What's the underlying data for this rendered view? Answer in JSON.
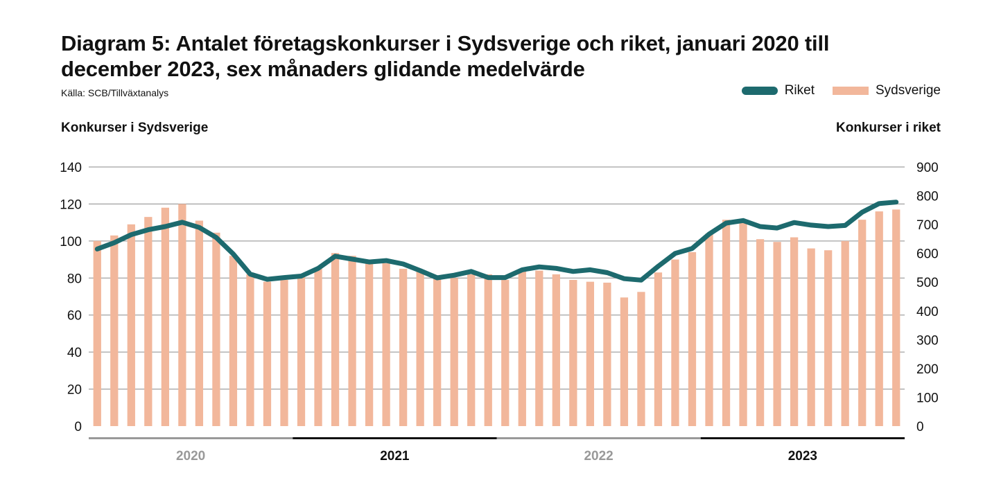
{
  "title": "Diagram 5: Antalet företagskonkurser i Sydsverige och riket, januari 2020 till december 2023, sex månaders glidande medelvärde",
  "source": "Källa: SCB/Tillväxtanalys",
  "legend": {
    "line_label": "Riket",
    "bar_label": "Sydsverige"
  },
  "colors": {
    "line": "#1d6a6e",
    "bar": "#f2b79b",
    "year_dark": "#111111",
    "year_light": "#999999"
  },
  "chart_data": {
    "type": "bar+line",
    "left_axis_title": "Konkurser i Sydsverige",
    "right_axis_title": "Konkurser i riket",
    "left_ylim": [
      0,
      140
    ],
    "left_ticks": [
      "0",
      "20",
      "40",
      "60",
      "80",
      "100",
      "120",
      "140"
    ],
    "right_ylim": [
      0,
      900
    ],
    "right_ticks": [
      "0",
      "100",
      "200",
      "300",
      "400",
      "500",
      "600",
      "700",
      "800",
      "900"
    ],
    "years": [
      {
        "label": "2020",
        "style": "light"
      },
      {
        "label": "2021",
        "style": "dark"
      },
      {
        "label": "2022",
        "style": "light"
      },
      {
        "label": "2023",
        "style": "dark"
      }
    ],
    "series": [
      {
        "name": "Sydsverige",
        "axis": "left",
        "type": "bar",
        "values": [
          100,
          103,
          109,
          113,
          118,
          120,
          111,
          104.5,
          92,
          82,
          78,
          79,
          81,
          85,
          93.5,
          92,
          89,
          88,
          85,
          84,
          81,
          80,
          82,
          82,
          79,
          84,
          84,
          82,
          79,
          78,
          77.5,
          69.5,
          72.5,
          83,
          90,
          94,
          104,
          111.5,
          110,
          101,
          99.5,
          102,
          96,
          95,
          100,
          111.5,
          116,
          117
        ]
      },
      {
        "name": "Riket",
        "axis": "right",
        "type": "line",
        "values": [
          615,
          637,
          665,
          682,
          693,
          708,
          690,
          655,
          598,
          528,
          510,
          516,
          521,
          548,
          590,
          580,
          570,
          575,
          563,
          540,
          515,
          524,
          537,
          516,
          516,
          543,
          553,
          548,
          537,
          543,
          533,
          512,
          507,
          555,
          600,
          617,
          667,
          705,
          714,
          693,
          688,
          707,
          698,
          693,
          697,
          743,
          773,
          778
        ]
      }
    ]
  }
}
